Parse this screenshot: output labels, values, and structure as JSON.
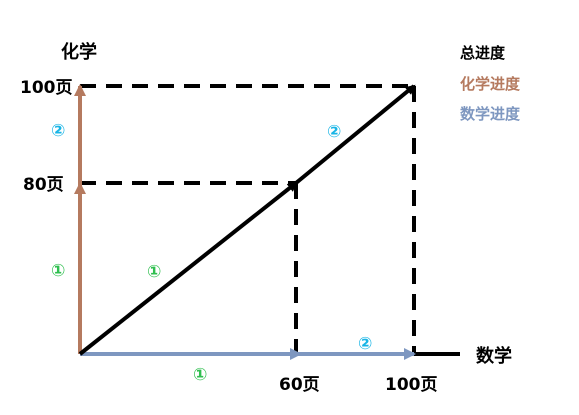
{
  "axes": {
    "y_label": "化学",
    "x_label": "数学",
    "y_ticks": [
      "100页",
      "80页"
    ],
    "x_ticks": [
      "60页",
      "100页"
    ]
  },
  "legend": {
    "total": "总进度",
    "chem": "化学进度",
    "math": "数学进度"
  },
  "markers": {
    "one": "①",
    "two": "②"
  },
  "colors": {
    "chem": "#b57a5f",
    "math": "#7e97c0",
    "total": "#000000",
    "marker_green": "#2fbf4f",
    "marker_cyan": "#19b5e6"
  }
}
